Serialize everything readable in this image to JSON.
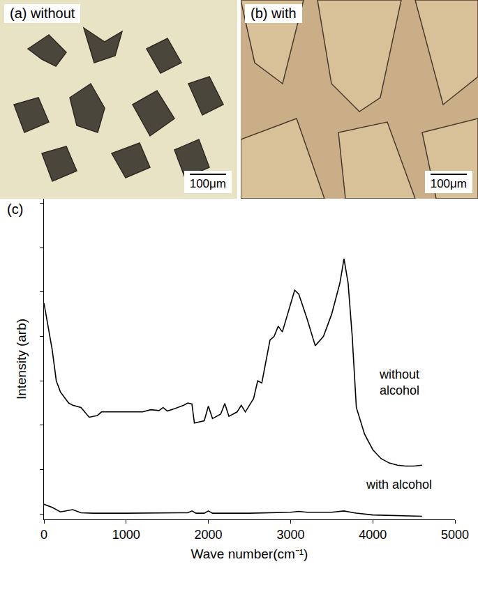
{
  "panels": [
    {
      "label": "(a) without",
      "scale_bar": "100μm"
    },
    {
      "label": "(b) with",
      "scale_bar": "100μm"
    }
  ],
  "chart_data": {
    "type": "line",
    "panel_label": "(c)",
    "x_label": "Wave number(cm⁻¹)",
    "y_label": "Intensity (arb)",
    "xlim": [
      0,
      5000
    ],
    "xticks": [
      0,
      1000,
      2000,
      3000,
      4000,
      5000
    ],
    "ylim": [
      -0.12,
      7.1
    ],
    "yticks": [
      0,
      1,
      2,
      3,
      4,
      5,
      6,
      7
    ],
    "tick_labels": "x",
    "grid": false,
    "series": [
      {
        "name": "without alcohol",
        "color": "#000000",
        "x": [
          0,
          50,
          100,
          150,
          200,
          300,
          350,
          450,
          550,
          650,
          700,
          1000,
          1200,
          1300,
          1400,
          1450,
          1500,
          1600,
          1700,
          1750,
          1800,
          1830,
          1950,
          2000,
          2050,
          2150,
          2200,
          2250,
          2350,
          2400,
          2450,
          2550,
          2600,
          2650,
          2750,
          2800,
          2850,
          2900,
          2950,
          3050,
          3100,
          3200,
          3300,
          3400,
          3500,
          3600,
          3650,
          3700,
          3750,
          3800,
          3900,
          4000,
          4100,
          4200,
          4300,
          4400,
          4500,
          4600
        ],
        "values": [
          4.75,
          4.2,
          3.7,
          3.0,
          2.75,
          2.5,
          2.45,
          2.4,
          2.18,
          2.22,
          2.3,
          2.3,
          2.3,
          2.35,
          2.33,
          2.4,
          2.32,
          2.38,
          2.45,
          2.5,
          2.48,
          2.05,
          2.1,
          2.43,
          2.15,
          2.25,
          2.49,
          2.2,
          2.3,
          2.45,
          2.3,
          2.6,
          3.0,
          2.95,
          3.92,
          4.0,
          4.23,
          4.1,
          4.4,
          5.04,
          4.95,
          4.4,
          3.79,
          4.0,
          4.5,
          5.2,
          5.75,
          5.2,
          4.0,
          2.4,
          1.8,
          1.45,
          1.25,
          1.15,
          1.1,
          1.08,
          1.08,
          1.1
        ]
      },
      {
        "name": "with alcohol",
        "color": "#000000",
        "x": [
          0,
          100,
          200,
          350,
          450,
          600,
          1000,
          1500,
          1750,
          1800,
          1850,
          1950,
          2000,
          2050,
          2500,
          3000,
          3100,
          3200,
          3500,
          3650,
          3800,
          4000,
          4300,
          4600
        ],
        "values": [
          0.22,
          0.15,
          0.05,
          0.1,
          0.03,
          0.02,
          0.02,
          0.03,
          0.03,
          0.07,
          0.02,
          0.02,
          0.07,
          0.02,
          0.02,
          0.04,
          0.06,
          0.04,
          0.04,
          0.07,
          0.02,
          -0.02,
          -0.04,
          -0.05
        ]
      }
    ]
  }
}
